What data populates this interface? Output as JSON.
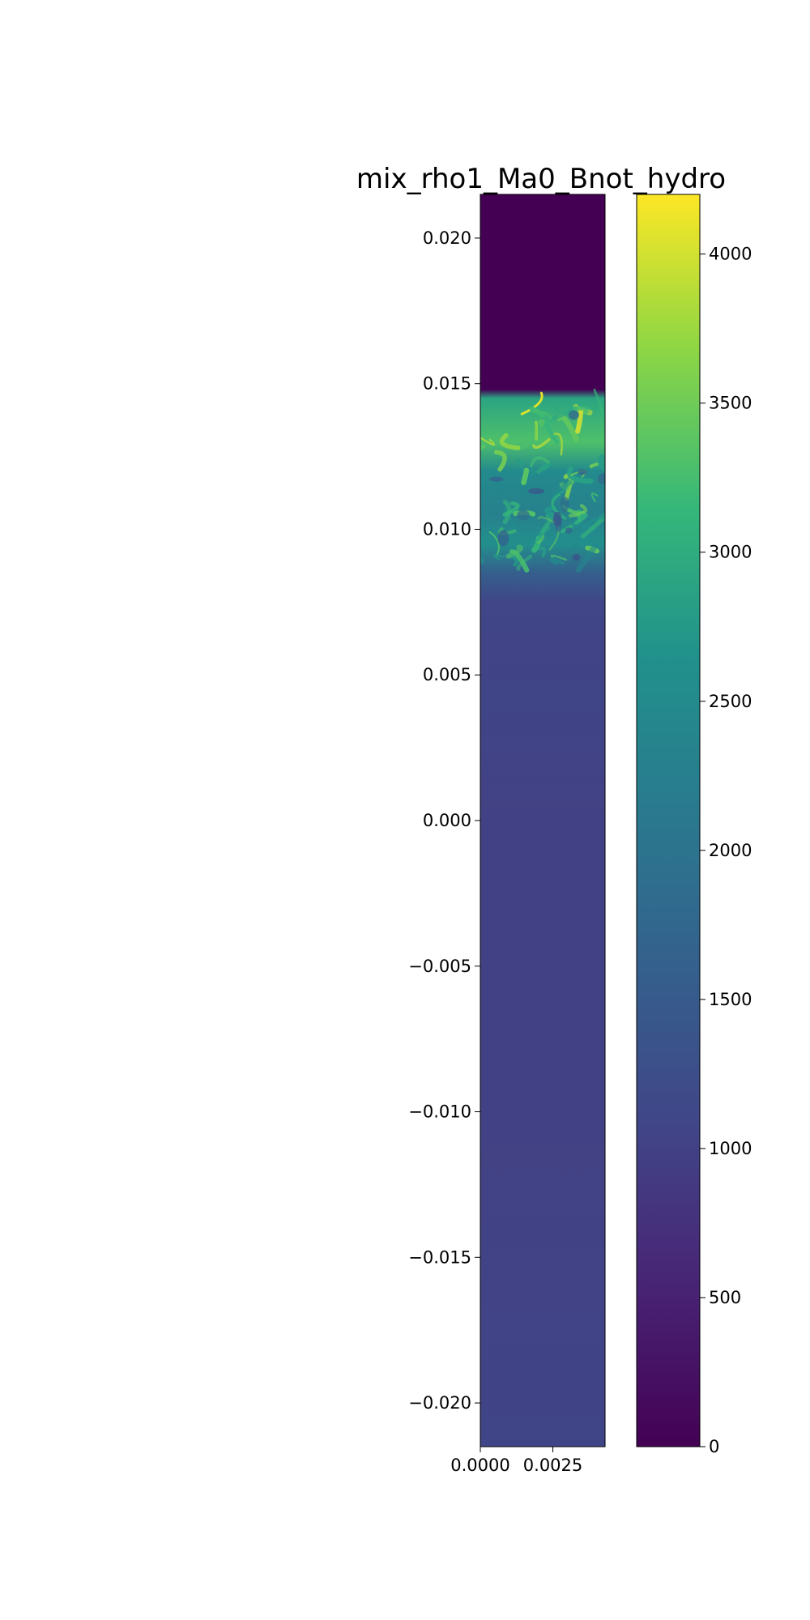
{
  "chart_data": {
    "type": "heatmap",
    "title": "mix_rho1_Ma0_Bnot_hydro",
    "xlabel": "",
    "ylabel": "",
    "colormap": "viridis",
    "xlim": [
      0.0,
      0.0043
    ],
    "ylim": [
      -0.0215,
      0.0215
    ],
    "x_ticks": [
      {
        "value": 0.0,
        "label": "0.0000"
      },
      {
        "value": 0.0025,
        "label": "0.0025"
      }
    ],
    "y_ticks": [
      {
        "value": 0.02,
        "label": "0.020"
      },
      {
        "value": 0.015,
        "label": "0.015"
      },
      {
        "value": 0.01,
        "label": "0.010"
      },
      {
        "value": 0.005,
        "label": "0.005"
      },
      {
        "value": 0.0,
        "label": "0.000"
      },
      {
        "value": -0.005,
        "label": "−0.005"
      },
      {
        "value": -0.01,
        "label": "−0.010"
      },
      {
        "value": -0.015,
        "label": "−0.015"
      },
      {
        "value": -0.02,
        "label": "−0.020"
      }
    ],
    "colorbar": {
      "range": [
        0,
        4200
      ],
      "ticks": [
        {
          "value": 0,
          "label": "0"
        },
        {
          "value": 500,
          "label": "500"
        },
        {
          "value": 1000,
          "label": "1000"
        },
        {
          "value": 1500,
          "label": "1500"
        },
        {
          "value": 2000,
          "label": "2000"
        },
        {
          "value": 2500,
          "label": "2500"
        },
        {
          "value": 3000,
          "label": "3000"
        },
        {
          "value": 3500,
          "label": "3500"
        },
        {
          "value": 4000,
          "label": "4000"
        }
      ]
    },
    "field_profile": [
      {
        "y": 0.0215,
        "value": 0
      },
      {
        "y": 0.0148,
        "value": 0
      },
      {
        "y": 0.0145,
        "value": 2900
      },
      {
        "y": 0.013,
        "value": 3300
      },
      {
        "y": 0.012,
        "value": 2500
      },
      {
        "y": 0.0105,
        "value": 2300
      },
      {
        "y": 0.0095,
        "value": 2600
      },
      {
        "y": 0.0085,
        "value": 1600
      },
      {
        "y": 0.0075,
        "value": 1100
      },
      {
        "y": 0.006,
        "value": 1050
      },
      {
        "y": 0.004,
        "value": 1080
      },
      {
        "y": 0.0,
        "value": 1000
      },
      {
        "y": -0.01,
        "value": 1000
      },
      {
        "y": -0.0215,
        "value": 1080
      }
    ]
  }
}
